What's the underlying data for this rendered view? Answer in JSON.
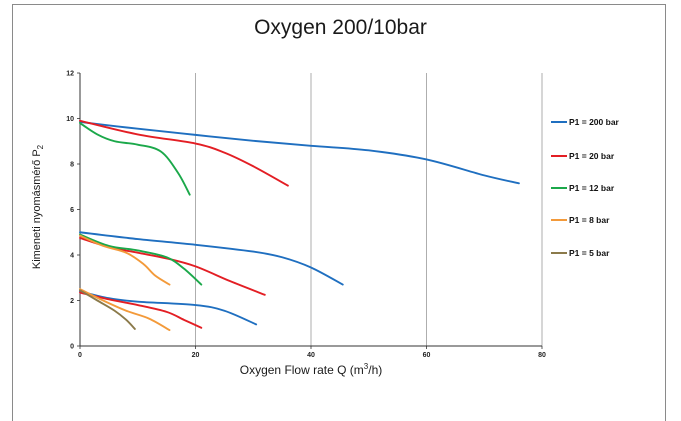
{
  "chart_data": {
    "type": "line",
    "title": "Oxygen 200/10bar",
    "xlabel_text": "Oxygen Flow rate Q (m",
    "xlabel_sup": "3",
    "xlabel_tail": "/h)",
    "ylabel_text": "Kimeneti nyomásmérő P",
    "ylabel_sub": "2",
    "xlim": [
      0,
      80
    ],
    "ylim": [
      0,
      12
    ],
    "xticks": [
      "0",
      "20",
      "40",
      "60",
      "80"
    ],
    "yticks": [
      "0",
      "2",
      "4",
      "6",
      "8",
      "10",
      "12"
    ],
    "grid": true,
    "legend_position": "right",
    "series": [
      {
        "name": "P1 = 200 bar",
        "color": "#1f6fc0",
        "curves": [
          [
            [
              0,
              9.85
            ],
            [
              10,
              9.55
            ],
            [
              20,
              9.28
            ],
            [
              30,
              9.02
            ],
            [
              40,
              8.8
            ],
            [
              50,
              8.6
            ],
            [
              60,
              8.2
            ],
            [
              70,
              7.5
            ],
            [
              76,
              7.15
            ]
          ],
          [
            [
              0,
              5.0
            ],
            [
              10,
              4.7
            ],
            [
              20,
              4.45
            ],
            [
              30,
              4.15
            ],
            [
              35,
              3.9
            ],
            [
              40,
              3.45
            ],
            [
              45.5,
              2.7
            ]
          ],
          [
            [
              0,
              2.4
            ],
            [
              5,
              2.1
            ],
            [
              10,
              1.95
            ],
            [
              20,
              1.8
            ],
            [
              25,
              1.55
            ],
            [
              30.5,
              0.95
            ]
          ]
        ]
      },
      {
        "name": "P1 = 20 bar",
        "color": "#e31e24",
        "curves": [
          [
            [
              0,
              9.9
            ],
            [
              10,
              9.3
            ],
            [
              20,
              8.9
            ],
            [
              25,
              8.5
            ],
            [
              30,
              7.9
            ],
            [
              36,
              7.05
            ]
          ],
          [
            [
              0,
              4.75
            ],
            [
              5,
              4.35
            ],
            [
              10,
              4.1
            ],
            [
              15,
              3.85
            ],
            [
              20,
              3.5
            ],
            [
              26,
              2.85
            ],
            [
              32,
              2.25
            ]
          ],
          [
            [
              0,
              2.35
            ],
            [
              5,
              2.05
            ],
            [
              10,
              1.8
            ],
            [
              15,
              1.5
            ],
            [
              18,
              1.15
            ],
            [
              21,
              0.8
            ]
          ]
        ]
      },
      {
        "name": "P1 = 12 bar",
        "color": "#1ba84a",
        "curves": [
          [
            [
              0,
              9.8
            ],
            [
              3,
              9.3
            ],
            [
              6,
              9.0
            ],
            [
              10,
              8.85
            ],
            [
              14,
              8.55
            ],
            [
              17,
              7.6
            ],
            [
              19,
              6.65
            ]
          ],
          [
            [
              0,
              4.9
            ],
            [
              5,
              4.4
            ],
            [
              10,
              4.2
            ],
            [
              15,
              3.9
            ],
            [
              18,
              3.4
            ],
            [
              21,
              2.7
            ]
          ]
        ]
      },
      {
        "name": "P1 = 8 bar",
        "color": "#f39a3a",
        "curves": [
          [
            [
              0,
              4.85
            ],
            [
              4,
              4.4
            ],
            [
              8,
              4.1
            ],
            [
              11,
              3.6
            ],
            [
              13,
              3.1
            ],
            [
              15.5,
              2.7
            ]
          ],
          [
            [
              0,
              2.5
            ],
            [
              4,
              2.0
            ],
            [
              8,
              1.55
            ],
            [
              12,
              1.2
            ],
            [
              15.5,
              0.7
            ]
          ]
        ]
      },
      {
        "name": "P1 = 5 bar",
        "color": "#8b7a4a",
        "curves": [
          [
            [
              0,
              2.45
            ],
            [
              3,
              2.0
            ],
            [
              6,
              1.55
            ],
            [
              8,
              1.15
            ],
            [
              9.5,
              0.75
            ]
          ]
        ]
      }
    ]
  }
}
